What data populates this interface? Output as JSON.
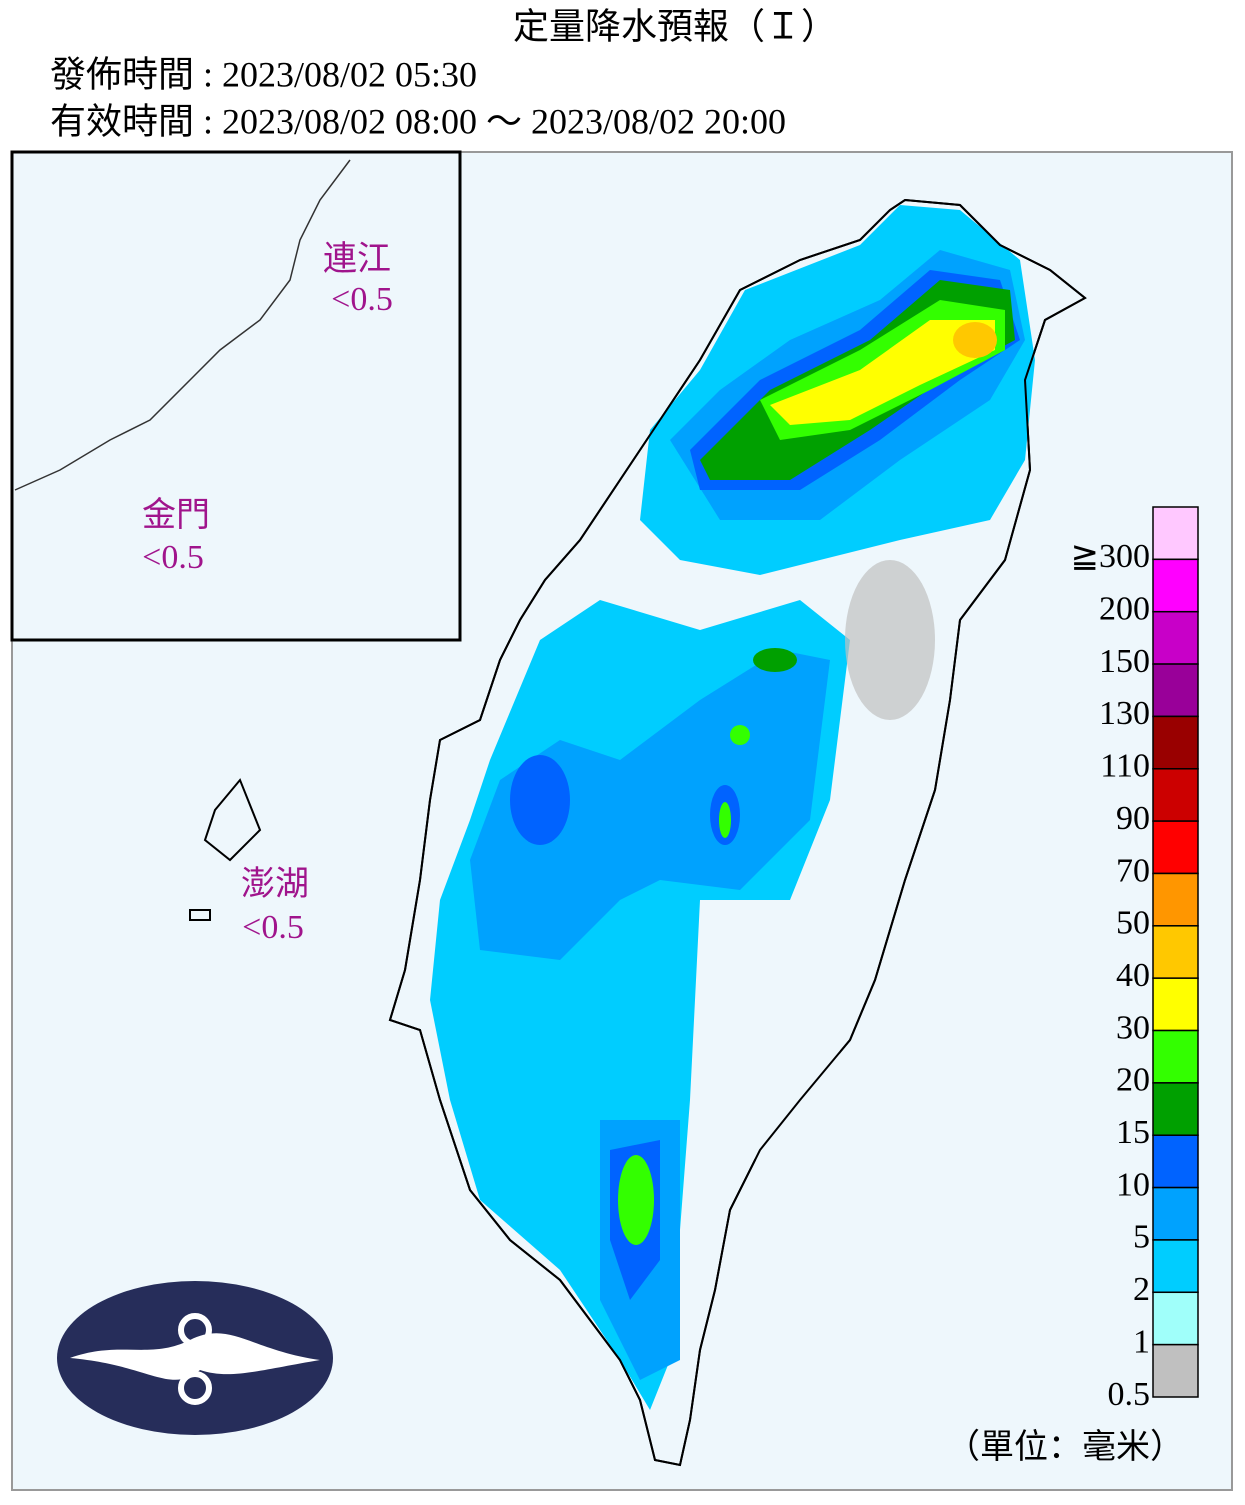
{
  "header": {
    "title": "定量降水預報（Ｉ）",
    "issue_time": "發佈時間 : 2023/08/02 05:30",
    "valid_time": "有效時間 : 2023/08/02 08:00 ～ 2023/08/02 20:00"
  },
  "islands": [
    {
      "name": "連江",
      "value": "<0.5"
    },
    {
      "name": "金門",
      "value": "<0.5"
    },
    {
      "name": "澎湖",
      "value": "<0.5"
    }
  ],
  "legend": {
    "levels": [
      {
        "label": "≧300",
        "color": "#ffc8ff"
      },
      {
        "label": "200",
        "color": "#ff00ff"
      },
      {
        "label": "150",
        "color": "#c800c8"
      },
      {
        "label": "130",
        "color": "#990099"
      },
      {
        "label": "110",
        "color": "#990000"
      },
      {
        "label": "90",
        "color": "#cc0000"
      },
      {
        "label": "70",
        "color": "#ff0000"
      },
      {
        "label": "50",
        "color": "#ff9600"
      },
      {
        "label": "40",
        "color": "#ffc800"
      },
      {
        "label": "30",
        "color": "#ffff00"
      },
      {
        "label": "20",
        "color": "#33ff00"
      },
      {
        "label": "15",
        "color": "#00a000"
      },
      {
        "label": "10",
        "color": "#0063ff"
      },
      {
        "label": "5",
        "color": "#00a2fe"
      },
      {
        "label": "2",
        "color": "#00cdff"
      },
      {
        "label": "1",
        "color": "#a0fffa"
      },
      {
        "label": "0.5",
        "color": "#c0c0c0"
      }
    ],
    "unit": "（單位：毫米）"
  }
}
